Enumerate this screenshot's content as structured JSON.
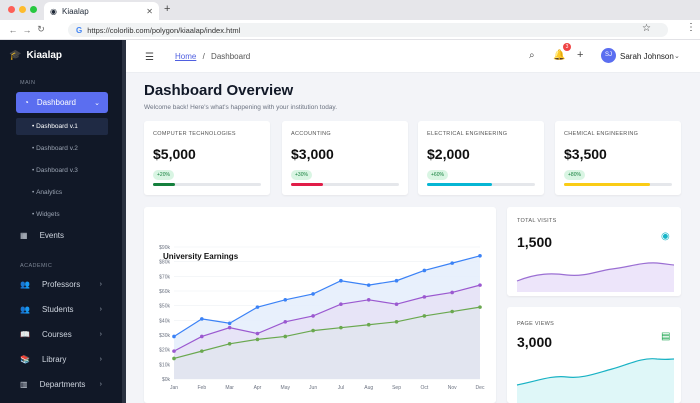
{
  "browser": {
    "tab_title": "Kiaalap",
    "url": "https://colorlib.com/polygon/kiaalap/index.html"
  },
  "sidebar": {
    "brand": "Kiaalap",
    "section_main": "MAIN",
    "active": "Dashboard",
    "subitems": [
      "Dashboard v.1",
      "Dashboard v.2",
      "Dashboard v.3",
      "Analytics",
      "Widgets"
    ],
    "events": "Events",
    "section_academic": "ACADEMIC",
    "items": [
      "Professors",
      "Students",
      "Courses",
      "Library",
      "Departments"
    ]
  },
  "topbar": {
    "breadcrumb_home": "Home",
    "breadcrumb_sep": "/",
    "breadcrumb_current": "Dashboard",
    "notif_count": "3",
    "avatar_initials": "SJ",
    "user_name": "Sarah Johnson"
  },
  "page": {
    "title": "Dashboard Overview",
    "subtitle": "Welcome back! Here's what's happening with your institution today."
  },
  "stats": [
    {
      "label": "COMPUTER TECHNOLOGIES",
      "value": "$5,000",
      "change": "+20%",
      "progress": 0.2,
      "color": "#15803d"
    },
    {
      "label": "ACCOUNTING",
      "value": "$3,000",
      "change": "+30%",
      "progress": 0.3,
      "color": "#e11d48"
    },
    {
      "label": "ELECTRICAL ENGINEERING",
      "value": "$2,000",
      "change": "+60%",
      "progress": 0.6,
      "color": "#06b6d4"
    },
    {
      "label": "CHEMICAL ENGINEERING",
      "value": "$3,500",
      "change": "+80%",
      "progress": 0.8,
      "color": "#facc15"
    }
  ],
  "visits": {
    "label": "TOTAL VISITS",
    "value": "1,500"
  },
  "pageviews": {
    "label": "PAGE VIEWS",
    "value": "3,000"
  },
  "chart_data": {
    "type": "area",
    "title": "University Earnings",
    "categories": [
      "Jan",
      "Feb",
      "Mar",
      "Apr",
      "May",
      "Jun",
      "Jul",
      "Aug",
      "Sep",
      "Oct",
      "Nov",
      "Dec"
    ],
    "yticks": [
      "$0k",
      "$10k",
      "$20k",
      "$30k",
      "$40k",
      "$50k",
      "$60k",
      "$70k",
      "$80k",
      "$90k"
    ],
    "ylim": [
      0,
      90
    ],
    "series": [
      {
        "values": [
          29,
          41,
          38,
          49,
          54,
          58,
          67,
          64,
          67,
          74,
          79,
          84
        ],
        "color": "#3b82f6"
      },
      {
        "values": [
          19,
          29,
          35,
          31,
          39,
          43,
          51,
          54,
          51,
          56,
          59,
          64
        ],
        "color": "#9b59d0"
      },
      {
        "values": [
          14,
          19,
          24,
          27,
          29,
          33,
          35,
          37,
          39,
          43,
          46,
          49
        ],
        "color": "#6aa84f"
      }
    ]
  }
}
